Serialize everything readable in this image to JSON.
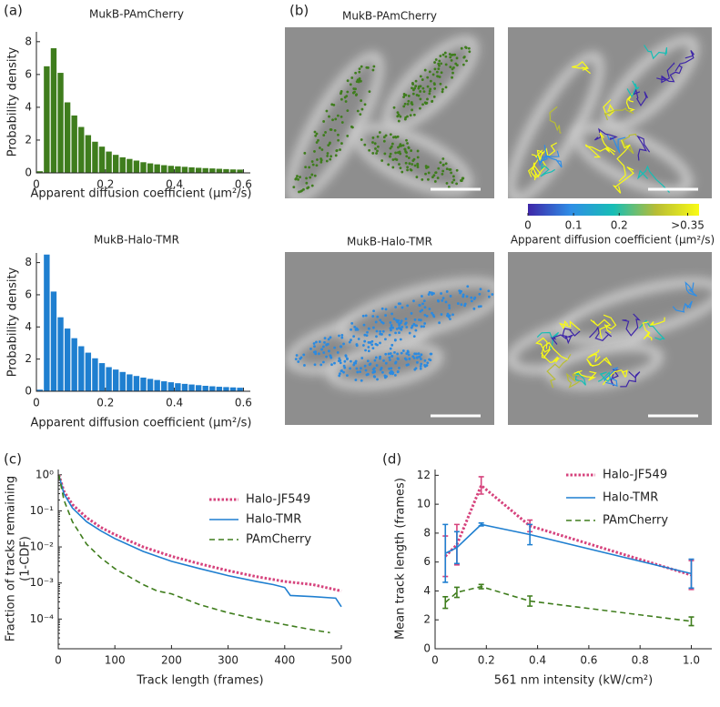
{
  "panel_labels": [
    "(a)",
    "(b)",
    "(c)",
    "(d)"
  ],
  "images": {
    "titles": [
      "MukB-PAmCherry",
      "MukB-Halo-TMR"
    ]
  },
  "colorbar": {
    "lim": [
      0,
      0.375
    ],
    "ticks": [
      0,
      0.1,
      0.2,
      {
        "value": 0.35,
        "label": ">0.35"
      }
    ],
    "label": "Apparent diffusion coefficient (μm²/s)"
  },
  "chart_data": [
    {
      "type": "histogram",
      "title": "MukB-PAmCherry",
      "xlabel": "Apparent diffusion coefficient (μm²/s)",
      "ylabel": "Probability density",
      "color": "#3f7d1d",
      "bins": [
        0,
        0.02,
        0.04,
        0.06,
        0.08,
        0.1,
        0.12,
        0.14,
        0.16,
        0.18,
        0.2,
        0.22,
        0.24,
        0.26,
        0.28,
        0.3,
        0.32,
        0.34,
        0.36,
        0.38,
        0.4,
        0.42,
        0.44,
        0.46,
        0.48,
        0.5,
        0.52,
        0.54,
        0.56,
        0.58,
        0.6
      ],
      "values": [
        0.1,
        6.5,
        7.6,
        6.1,
        4.3,
        3.5,
        2.8,
        2.3,
        1.9,
        1.6,
        1.3,
        1.1,
        0.95,
        0.85,
        0.75,
        0.65,
        0.58,
        0.52,
        0.47,
        0.43,
        0.4,
        0.37,
        0.34,
        0.31,
        0.29,
        0.27,
        0.25,
        0.23,
        0.21,
        0.2
      ],
      "xlim": [
        0,
        0.62
      ],
      "ylim": [
        0,
        8.6
      ],
      "xticks": [
        0,
        0.2,
        0.4,
        0.6
      ],
      "yticks": [
        0,
        2,
        4,
        6,
        8
      ]
    },
    {
      "type": "histogram",
      "title": "MukB-Halo-TMR",
      "xlabel": "Apparent diffusion coefficient (μm²/s)",
      "ylabel": "Probability density",
      "color": "#1f7fd0",
      "bins": [
        0,
        0.02,
        0.04,
        0.06,
        0.08,
        0.1,
        0.12,
        0.14,
        0.16,
        0.18,
        0.2,
        0.22,
        0.24,
        0.26,
        0.28,
        0.3,
        0.32,
        0.34,
        0.36,
        0.38,
        0.4,
        0.42,
        0.44,
        0.46,
        0.48,
        0.5,
        0.52,
        0.54,
        0.56,
        0.58,
        0.6
      ],
      "values": [
        0.1,
        8.5,
        6.2,
        4.6,
        3.9,
        3.3,
        2.8,
        2.4,
        2.05,
        1.75,
        1.5,
        1.35,
        1.2,
        1.05,
        0.95,
        0.85,
        0.77,
        0.7,
        0.62,
        0.56,
        0.5,
        0.46,
        0.42,
        0.38,
        0.34,
        0.31,
        0.28,
        0.26,
        0.24,
        0.22
      ],
      "xlim": [
        0,
        0.62
      ],
      "ylim": [
        0,
        8.6
      ],
      "xticks": [
        0,
        0.2,
        0.4,
        0.6
      ],
      "yticks": [
        0,
        2,
        4,
        6,
        8
      ]
    },
    {
      "type": "line",
      "yscale": "log",
      "xlabel": "Track length (frames)",
      "ylabel": [
        "Fraction of tracks remaining",
        "(1-CDF)"
      ],
      "legend": "upper right",
      "xlim": [
        0,
        500
      ],
      "ylim": [
        1.5e-05,
        1.4
      ],
      "xticks": [
        0,
        100,
        200,
        300,
        400,
        500
      ],
      "yticks": [
        {
          "value": 1,
          "label": "10⁰"
        },
        {
          "value": 0.1,
          "label": "10⁻¹"
        },
        {
          "value": 0.01,
          "label": "10⁻²"
        },
        {
          "value": 0.001,
          "label": "10⁻³"
        },
        {
          "value": 0.0001,
          "label": "10⁻⁴"
        }
      ],
      "series": [
        {
          "name": "Halo-JF549",
          "color": "#d6437d",
          "style": "dotted",
          "x": [
            1,
            10,
            25,
            50,
            75,
            100,
            150,
            200,
            250,
            300,
            350,
            400,
            450,
            500
          ],
          "values": [
            1,
            0.35,
            0.15,
            0.065,
            0.035,
            0.022,
            0.01,
            0.0055,
            0.0034,
            0.0022,
            0.0015,
            0.0011,
            0.0009,
            0.0006
          ]
        },
        {
          "name": "Halo-TMR",
          "color": "#1f7fd0",
          "style": "solid",
          "x": [
            1,
            10,
            25,
            50,
            75,
            100,
            150,
            200,
            250,
            300,
            350,
            380,
            400,
            410,
            450,
            490,
            500
          ],
          "values": [
            1,
            0.3,
            0.12,
            0.05,
            0.028,
            0.017,
            0.0075,
            0.004,
            0.0025,
            0.0016,
            0.0011,
            0.0009,
            0.00075,
            0.00045,
            0.00042,
            0.00038,
            0.00022
          ]
        },
        {
          "name": "PAmCherry",
          "color": "#3f7d1d",
          "style": "dashed",
          "x": [
            1,
            10,
            25,
            50,
            75,
            100,
            125,
            150,
            175,
            200,
            250,
            300,
            350,
            400,
            450,
            480
          ],
          "values": [
            1,
            0.2,
            0.05,
            0.012,
            0.005,
            0.0025,
            0.0015,
            0.0009,
            0.0006,
            0.0005,
            0.00025,
            0.00015,
            0.0001,
            7e-05,
            5e-05,
            4.2e-05
          ]
        }
      ]
    },
    {
      "type": "line",
      "xlabel": "561 nm intensity (kW/cm²)",
      "ylabel": "Mean track length (frames)",
      "legend": "upper right",
      "xlim": [
        0,
        1.08
      ],
      "ylim": [
        0,
        12.4
      ],
      "xticks": [
        0,
        0.2,
        0.4,
        0.6,
        0.8,
        {
          "value": 1,
          "label": "1.0"
        }
      ],
      "yticks": [
        0,
        2,
        4,
        6,
        8,
        10,
        12
      ],
      "x": [
        0.04,
        0.085,
        0.18,
        0.37,
        1
      ],
      "series": [
        {
          "name": "Halo-JF549",
          "color": "#d6437d",
          "style": "dotted",
          "values": [
            6.4,
            7.2,
            11.3,
            8.5,
            5.1
          ],
          "errors": [
            1.4,
            1.4,
            0.6,
            0.4,
            1.0
          ]
        },
        {
          "name": "Halo-TMR",
          "color": "#1f7fd0",
          "style": "solid",
          "values": [
            6.6,
            7.0,
            8.6,
            7.9,
            5.2
          ],
          "errors": [
            2.0,
            1.1,
            0.1,
            0.7,
            1.0
          ]
        },
        {
          "name": "PAmCherry",
          "color": "#3f7d1d",
          "style": "dashed",
          "values": [
            3.2,
            3.9,
            4.3,
            3.3,
            1.9
          ],
          "errors": [
            0.4,
            0.35,
            0.15,
            0.35,
            0.3
          ]
        }
      ]
    }
  ]
}
